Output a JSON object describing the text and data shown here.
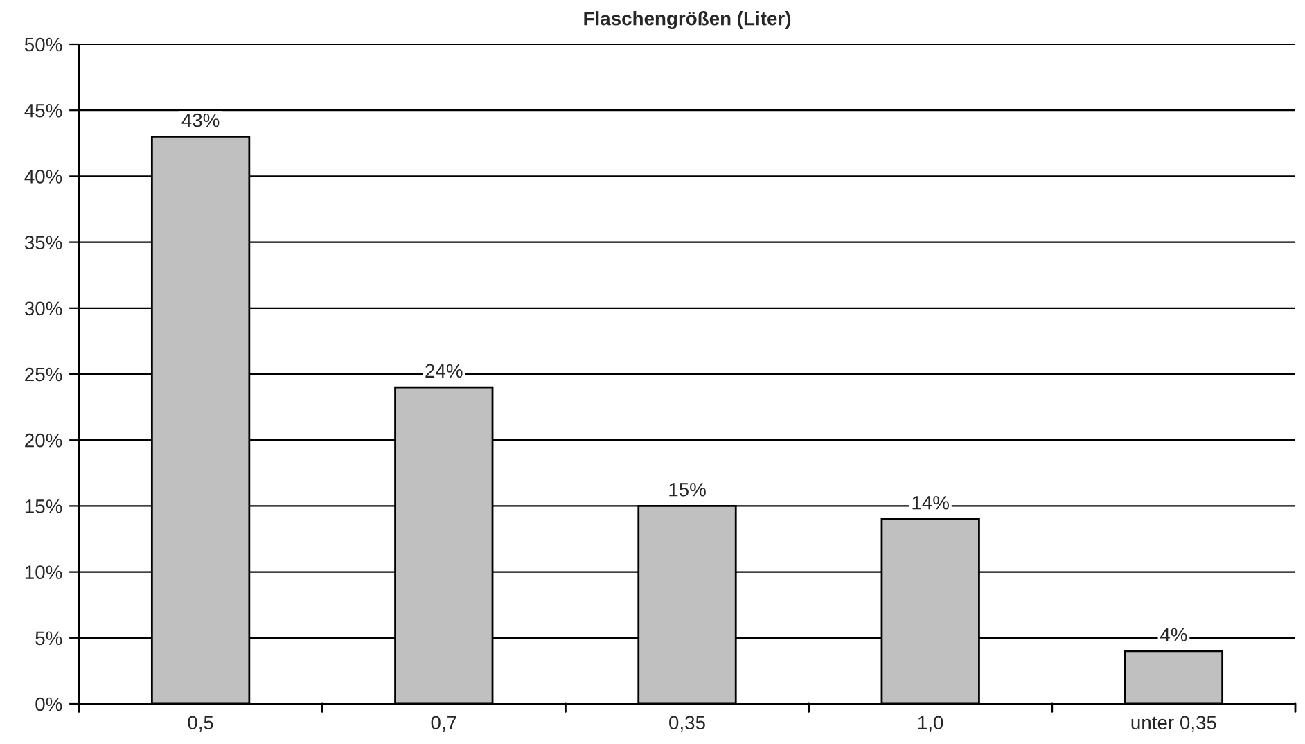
{
  "chart_data": {
    "type": "bar",
    "title": "Flaschengrößen (Liter)",
    "categories": [
      "0,5",
      "0,7",
      "0,35",
      "1,0",
      "unter 0,35"
    ],
    "values": [
      43,
      24,
      15,
      14,
      4
    ],
    "value_labels": [
      "43%",
      "24%",
      "15%",
      "14%",
      "4%"
    ],
    "color": "#c0c0c0",
    "ylim": [
      0,
      50
    ],
    "yticks": [
      {
        "value": 0,
        "label": "0%"
      },
      {
        "value": 5,
        "label": "5%"
      },
      {
        "value": 10,
        "label": "10%"
      },
      {
        "value": 15,
        "label": "15%"
      },
      {
        "value": 20,
        "label": "20%"
      },
      {
        "value": 25,
        "label": "25%"
      },
      {
        "value": 30,
        "label": "30%"
      },
      {
        "value": 35,
        "label": "35%"
      },
      {
        "value": 40,
        "label": "40%"
      },
      {
        "value": 45,
        "label": "45%"
      },
      {
        "value": 50,
        "label": "50%"
      }
    ],
    "grid": "y",
    "legend": false
  }
}
